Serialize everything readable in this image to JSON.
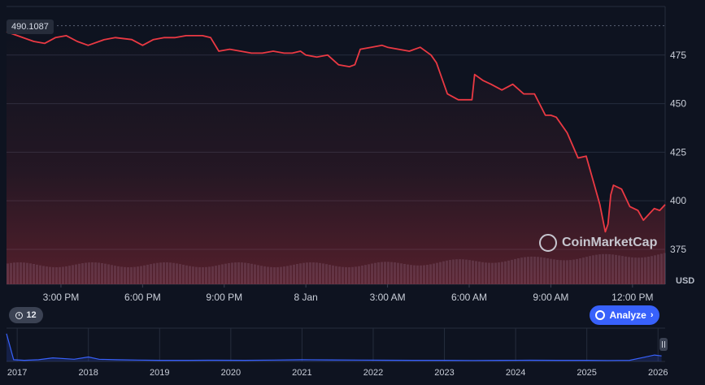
{
  "colors": {
    "background": "#0e1320",
    "price_line": "#ea3943",
    "grid": "#262d3d",
    "volume": "#2a3244",
    "navigator_line": "#3861fb",
    "accent": "#3861fb"
  },
  "price_badge": "490.1087",
  "currency_label": "USD",
  "events_count": "12",
  "analyze_label": "Analyze",
  "watermark_text": "CoinMarketCap",
  "chart_data": {
    "type": "line",
    "title": "",
    "xlabel": "",
    "ylabel": "USD",
    "ylim": [
      357,
      500
    ],
    "y_ticks": [
      "375",
      "400",
      "425",
      "450",
      "475"
    ],
    "x_ticks": [
      "3:00 PM",
      "6:00 PM",
      "9:00 PM",
      "8 Jan",
      "3:00 AM",
      "6:00 AM",
      "9:00 AM",
      "12:00 PM"
    ],
    "x_tick_values": [
      15,
      18,
      21,
      24,
      27,
      30,
      33,
      36
    ],
    "x_range": [
      13.0,
      37.2
    ],
    "x_unit": "hour",
    "reference_line": 490.1087,
    "grid": true,
    "series": [
      {
        "x": [
          13.0,
          14.0,
          14.4,
          14.8,
          15.2,
          15.6,
          16.0,
          16.6,
          17.0,
          17.6,
          18.0,
          18.4,
          18.8,
          19.2,
          19.6,
          20.2,
          20.5,
          20.8,
          21.2,
          21.6,
          22.0,
          22.4,
          22.8,
          23.2,
          23.5,
          23.8,
          24.0,
          24.4,
          24.8,
          25.2,
          25.6,
          25.8,
          26.0,
          26.4,
          26.8,
          27.0,
          27.4,
          27.8,
          28.2,
          28.6,
          28.8,
          29.0,
          29.2,
          29.6,
          30.0,
          30.1,
          30.2,
          30.5,
          30.8,
          31.2,
          31.6,
          32.0,
          32.4,
          32.8,
          33.0,
          33.2,
          33.6,
          34.0,
          34.3,
          34.6,
          34.8,
          35.0,
          35.1,
          35.2,
          35.3,
          35.6,
          35.9,
          36.2,
          36.4,
          36.6,
          36.8,
          37.0,
          37.2
        ],
        "y": [
          487,
          482,
          481,
          484,
          485,
          482,
          480,
          483,
          484,
          483,
          480,
          483,
          484,
          484,
          485,
          485,
          484,
          477,
          478,
          477,
          476,
          476,
          477,
          476,
          476,
          477,
          475,
          474,
          475,
          470,
          469,
          470,
          478,
          479,
          480,
          479,
          478,
          477,
          479,
          475,
          471,
          463,
          455,
          452,
          452,
          452,
          465,
          462,
          460,
          457,
          460,
          455,
          455,
          444,
          444,
          443,
          435,
          422,
          423,
          408,
          398,
          384,
          388,
          403,
          408,
          406,
          397,
          395,
          390,
          393,
          396,
          395,
          398
        ]
      }
    ],
    "navigator": {
      "x_ticks": [
        "2017",
        "2018",
        "2019",
        "2020",
        "2021",
        "2022",
        "2023",
        "2024",
        "2025",
        "2026"
      ],
      "x_tick_values": [
        2017,
        2018,
        2019,
        2020,
        2021,
        2022,
        2023,
        2024,
        2025,
        2026
      ],
      "x_range": [
        2016.85,
        2026.1
      ],
      "y_range": [
        0,
        1200
      ],
      "series": {
        "x": [
          2016.85,
          2016.95,
          2017.1,
          2017.3,
          2017.5,
          2017.8,
          2018.0,
          2018.15,
          2018.4,
          2018.7,
          2019.0,
          2019.4,
          2019.8,
          2020.2,
          2020.6,
          2021.0,
          2021.4,
          2021.8,
          2022.2,
          2022.6,
          2023.0,
          2023.4,
          2023.8,
          2024.2,
          2024.6,
          2025.0,
          2025.3,
          2025.6,
          2025.8,
          2025.95,
          2026.05
        ],
        "y": [
          1000,
          60,
          40,
          60,
          130,
          80,
          160,
          80,
          60,
          50,
          40,
          40,
          45,
          40,
          50,
          60,
          55,
          50,
          45,
          40,
          40,
          35,
          40,
          45,
          40,
          40,
          35,
          40,
          150,
          230,
          200
        ]
      }
    }
  }
}
